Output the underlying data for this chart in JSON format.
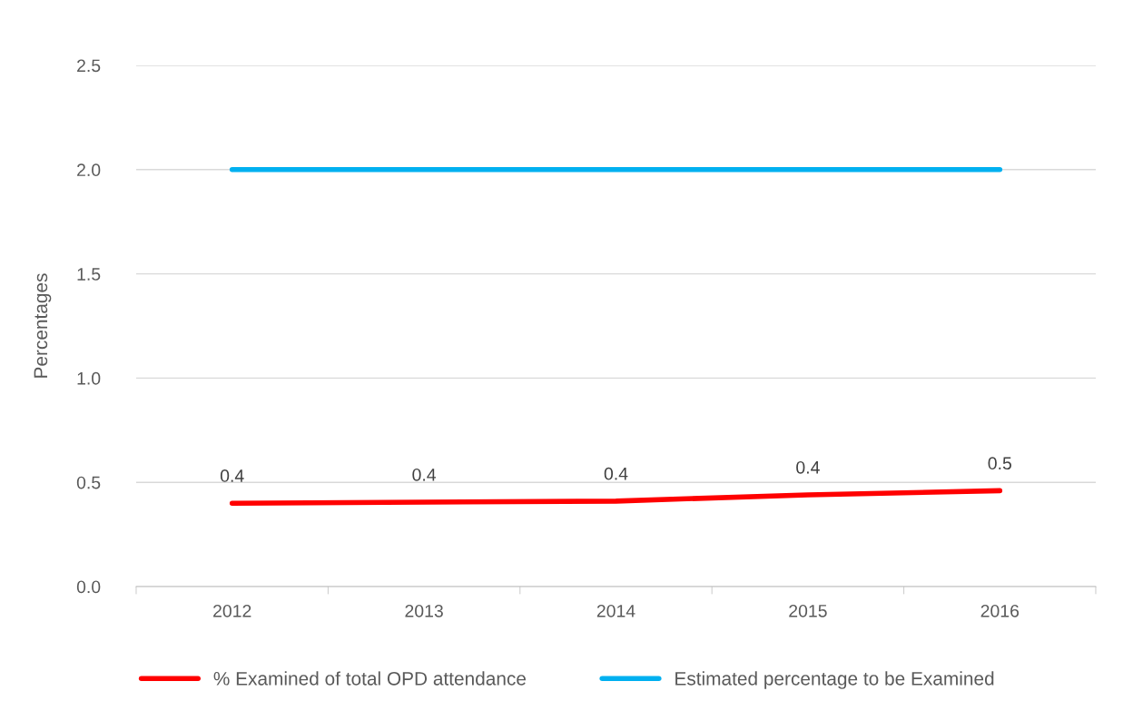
{
  "chart_data": {
    "type": "line",
    "ylabel": "Percentages",
    "categories": [
      "2012",
      "2013",
      "2014",
      "2015",
      "2016"
    ],
    "series": [
      {
        "name": "% Examined of total OPD attendance",
        "color": "#ff0000",
        "values": [
          0.4,
          0.405,
          0.41,
          0.44,
          0.46
        ],
        "value_labels": [
          "0.4",
          "0.4",
          "0.4",
          "0.4",
          "0.5"
        ]
      },
      {
        "name": "Estimated percentage to be Examined",
        "color": "#00b0f0",
        "values": [
          2.0,
          2.0,
          2.0,
          2.0,
          2.0
        ]
      }
    ],
    "ylim": [
      0,
      2.5
    ],
    "yticks": [
      {
        "value": 0,
        "label": "0.0"
      },
      {
        "value": 0.5,
        "label": "0.5"
      },
      {
        "value": 1,
        "label": "1.0"
      },
      {
        "value": 1.5,
        "label": "1.5"
      },
      {
        "value": 2,
        "label": "2.0"
      },
      {
        "value": 2.5,
        "label": "2.5"
      }
    ],
    "grid": "y",
    "legend": "bottom",
    "marker": "none",
    "line_style": "solid"
  }
}
